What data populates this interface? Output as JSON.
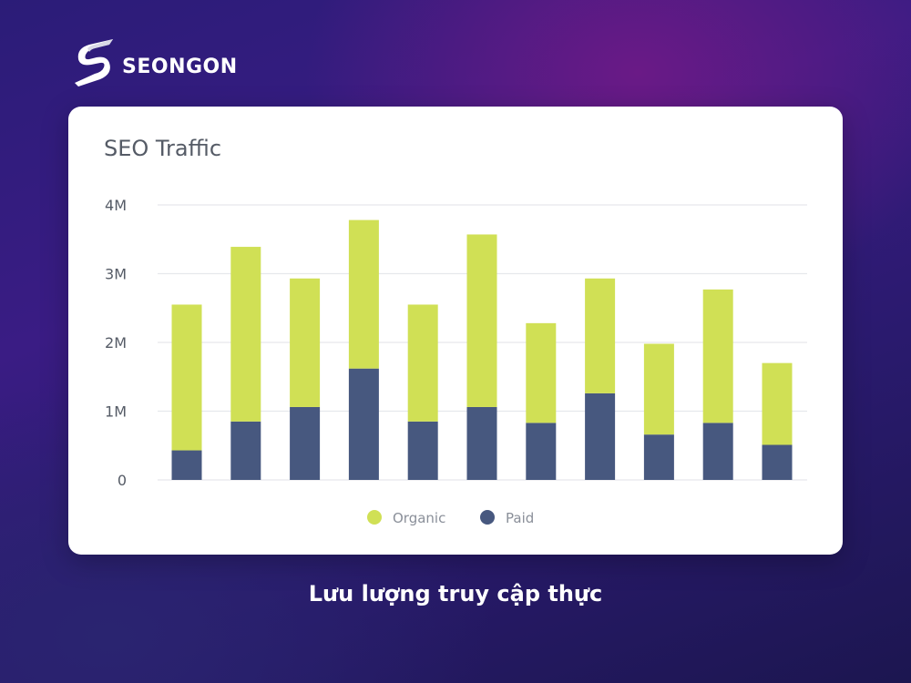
{
  "brand": {
    "name": "SEONGON",
    "logo_icon": "seongon-s-logo-icon"
  },
  "caption": "Lưu lượng truy cập thực",
  "colors": {
    "organic": "#d0e055",
    "paid": "#47587f",
    "grid": "#e6e8ec",
    "text": "#555b66",
    "card": "#ffffff"
  },
  "chart_data": {
    "type": "bar",
    "stacked": true,
    "title": "SEO Traffic",
    "xlabel": "",
    "ylabel": "",
    "categories": [
      "",
      "",
      "",
      "",
      "",
      "",
      "",
      "",
      "",
      "",
      ""
    ],
    "series": [
      {
        "name": "Paid",
        "color": "#47587f",
        "values": [
          0.43,
          0.85,
          1.06,
          1.62,
          0.85,
          1.06,
          0.83,
          1.26,
          0.66,
          0.83,
          0.51
        ]
      },
      {
        "name": "Organic",
        "color": "#d0e055",
        "values": [
          2.12,
          2.54,
          1.87,
          2.16,
          1.7,
          2.51,
          1.45,
          1.67,
          1.32,
          1.94,
          1.19
        ]
      }
    ],
    "ylim": [
      0,
      4
    ],
    "yticks": [
      0,
      1,
      2,
      3,
      4
    ],
    "ytick_labels": [
      "0",
      "1M",
      "2M",
      "3M",
      "4M"
    ],
    "grid": true,
    "legend": {
      "position": "bottom-center",
      "items": [
        "Organic",
        "Paid"
      ]
    }
  }
}
